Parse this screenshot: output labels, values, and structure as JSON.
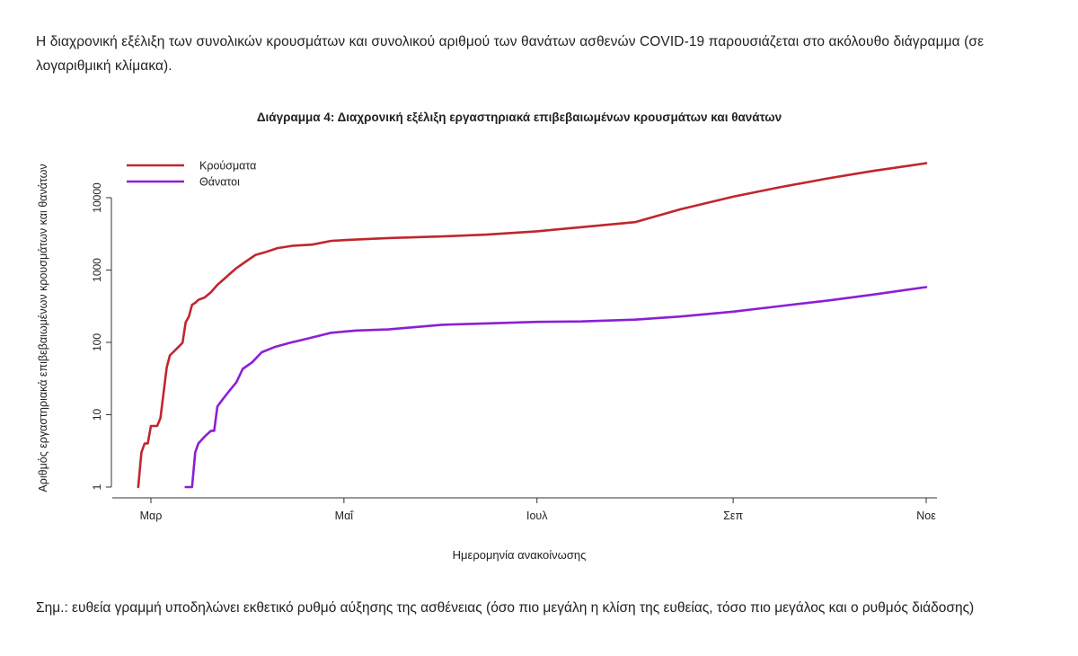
{
  "intro_text": "Η διαχρονική εξέλιξη των συνολικών κρουσμάτων και συνολικού αριθμού των θανάτων ασθενών COVID-19 παρουσιάζεται στο ακόλουθο διάγραμμα (σε λογαριθμική κλίμακα).",
  "note_text": "Σημ.: ευθεία γραμμή υποδηλώνει εκθετικό ρυθμό αύξησης της ασθένειας (όσο πιο μεγάλη η κλίση της ευθείας, τόσο πιο μεγάλος και ο ρυθμός διάδοσης)",
  "chart_data": {
    "type": "line",
    "title": "Διάγραμμα 4: Διαχρονική εξέλιξη εργαστηριακά επιβεβαιωμένων κρουσμάτων και θανάτων",
    "xlabel": "Ημερομηνία ανακοίνωσης",
    "ylabel": "Αριθμός εργαστηριακά επιβεβαιωμένων κρουσμάτων και θανάτων",
    "y_scale": "log",
    "ylim": [
      1,
      30000
    ],
    "y_ticks": [
      {
        "value": 1,
        "label": "1"
      },
      {
        "value": 10,
        "label": "10"
      },
      {
        "value": 100,
        "label": "100"
      },
      {
        "value": 1000,
        "label": "1000"
      },
      {
        "value": 10000,
        "label": "10000"
      }
    ],
    "xlim": [
      "2020-02-24",
      "2020-11-05"
    ],
    "x_ticks": [
      {
        "date": "2020-03-01",
        "label": "Μαρ"
      },
      {
        "date": "2020-05-01",
        "label": "Μαΐ"
      },
      {
        "date": "2020-07-01",
        "label": "Ιουλ"
      },
      {
        "date": "2020-09-01",
        "label": "Σεπ"
      },
      {
        "date": "2020-11-01",
        "label": "Νοε"
      }
    ],
    "legend_position": "top-left",
    "grid": false,
    "series": [
      {
        "name": "Κρούσματα",
        "color": "#c0262d",
        "points": [
          [
            "2020-02-26",
            1
          ],
          [
            "2020-02-27",
            3
          ],
          [
            "2020-02-28",
            4
          ],
          [
            "2020-02-29",
            4
          ],
          [
            "2020-03-01",
            7
          ],
          [
            "2020-03-03",
            7
          ],
          [
            "2020-03-04",
            9
          ],
          [
            "2020-03-06",
            45
          ],
          [
            "2020-03-07",
            66
          ],
          [
            "2020-03-08",
            73
          ],
          [
            "2020-03-10",
            89
          ],
          [
            "2020-03-11",
            99
          ],
          [
            "2020-03-12",
            190
          ],
          [
            "2020-03-13",
            228
          ],
          [
            "2020-03-14",
            331
          ],
          [
            "2020-03-15",
            352
          ],
          [
            "2020-03-16",
            387
          ],
          [
            "2020-03-18",
            418
          ],
          [
            "2020-03-20",
            495
          ],
          [
            "2020-03-22",
            624
          ],
          [
            "2020-03-24",
            743
          ],
          [
            "2020-03-26",
            892
          ],
          [
            "2020-03-28",
            1061
          ],
          [
            "2020-03-31",
            1314
          ],
          [
            "2020-04-03",
            1613
          ],
          [
            "2020-04-06",
            1755
          ],
          [
            "2020-04-10",
            2011
          ],
          [
            "2020-04-15",
            2170
          ],
          [
            "2020-04-21",
            2245
          ],
          [
            "2020-04-27",
            2534
          ],
          [
            "2020-05-04",
            2632
          ],
          [
            "2020-05-15",
            2770
          ],
          [
            "2020-06-01",
            2917
          ],
          [
            "2020-06-15",
            3088
          ],
          [
            "2020-07-01",
            3432
          ],
          [
            "2020-07-15",
            3910
          ],
          [
            "2020-08-01",
            4587
          ],
          [
            "2020-08-15",
            6858
          ],
          [
            "2020-09-01",
            10317
          ],
          [
            "2020-09-15",
            13730
          ],
          [
            "2020-10-01",
            18475
          ],
          [
            "2020-10-15",
            23414
          ],
          [
            "2020-11-01",
            30000
          ]
        ]
      },
      {
        "name": "Θάνατοι",
        "color": "#8b1fd6",
        "points": [
          [
            "2020-03-12",
            1
          ],
          [
            "2020-03-14",
            1
          ],
          [
            "2020-03-15",
            3
          ],
          [
            "2020-03-16",
            4
          ],
          [
            "2020-03-18",
            5
          ],
          [
            "2020-03-20",
            6
          ],
          [
            "2020-03-21",
            6
          ],
          [
            "2020-03-22",
            13
          ],
          [
            "2020-03-24",
            17
          ],
          [
            "2020-03-26",
            22
          ],
          [
            "2020-03-28",
            28
          ],
          [
            "2020-03-30",
            43
          ],
          [
            "2020-04-02",
            53
          ],
          [
            "2020-04-05",
            73
          ],
          [
            "2020-04-09",
            86
          ],
          [
            "2020-04-14",
            99
          ],
          [
            "2020-04-20",
            114
          ],
          [
            "2020-04-27",
            136
          ],
          [
            "2020-05-05",
            146
          ],
          [
            "2020-05-15",
            151
          ],
          [
            "2020-06-01",
            175
          ],
          [
            "2020-06-15",
            183
          ],
          [
            "2020-07-01",
            192
          ],
          [
            "2020-07-15",
            195
          ],
          [
            "2020-08-01",
            206
          ],
          [
            "2020-08-15",
            227
          ],
          [
            "2020-09-01",
            266
          ],
          [
            "2020-09-15",
            314
          ],
          [
            "2020-10-01",
            379
          ],
          [
            "2020-10-15",
            457
          ],
          [
            "2020-11-01",
            581
          ]
        ]
      }
    ]
  }
}
